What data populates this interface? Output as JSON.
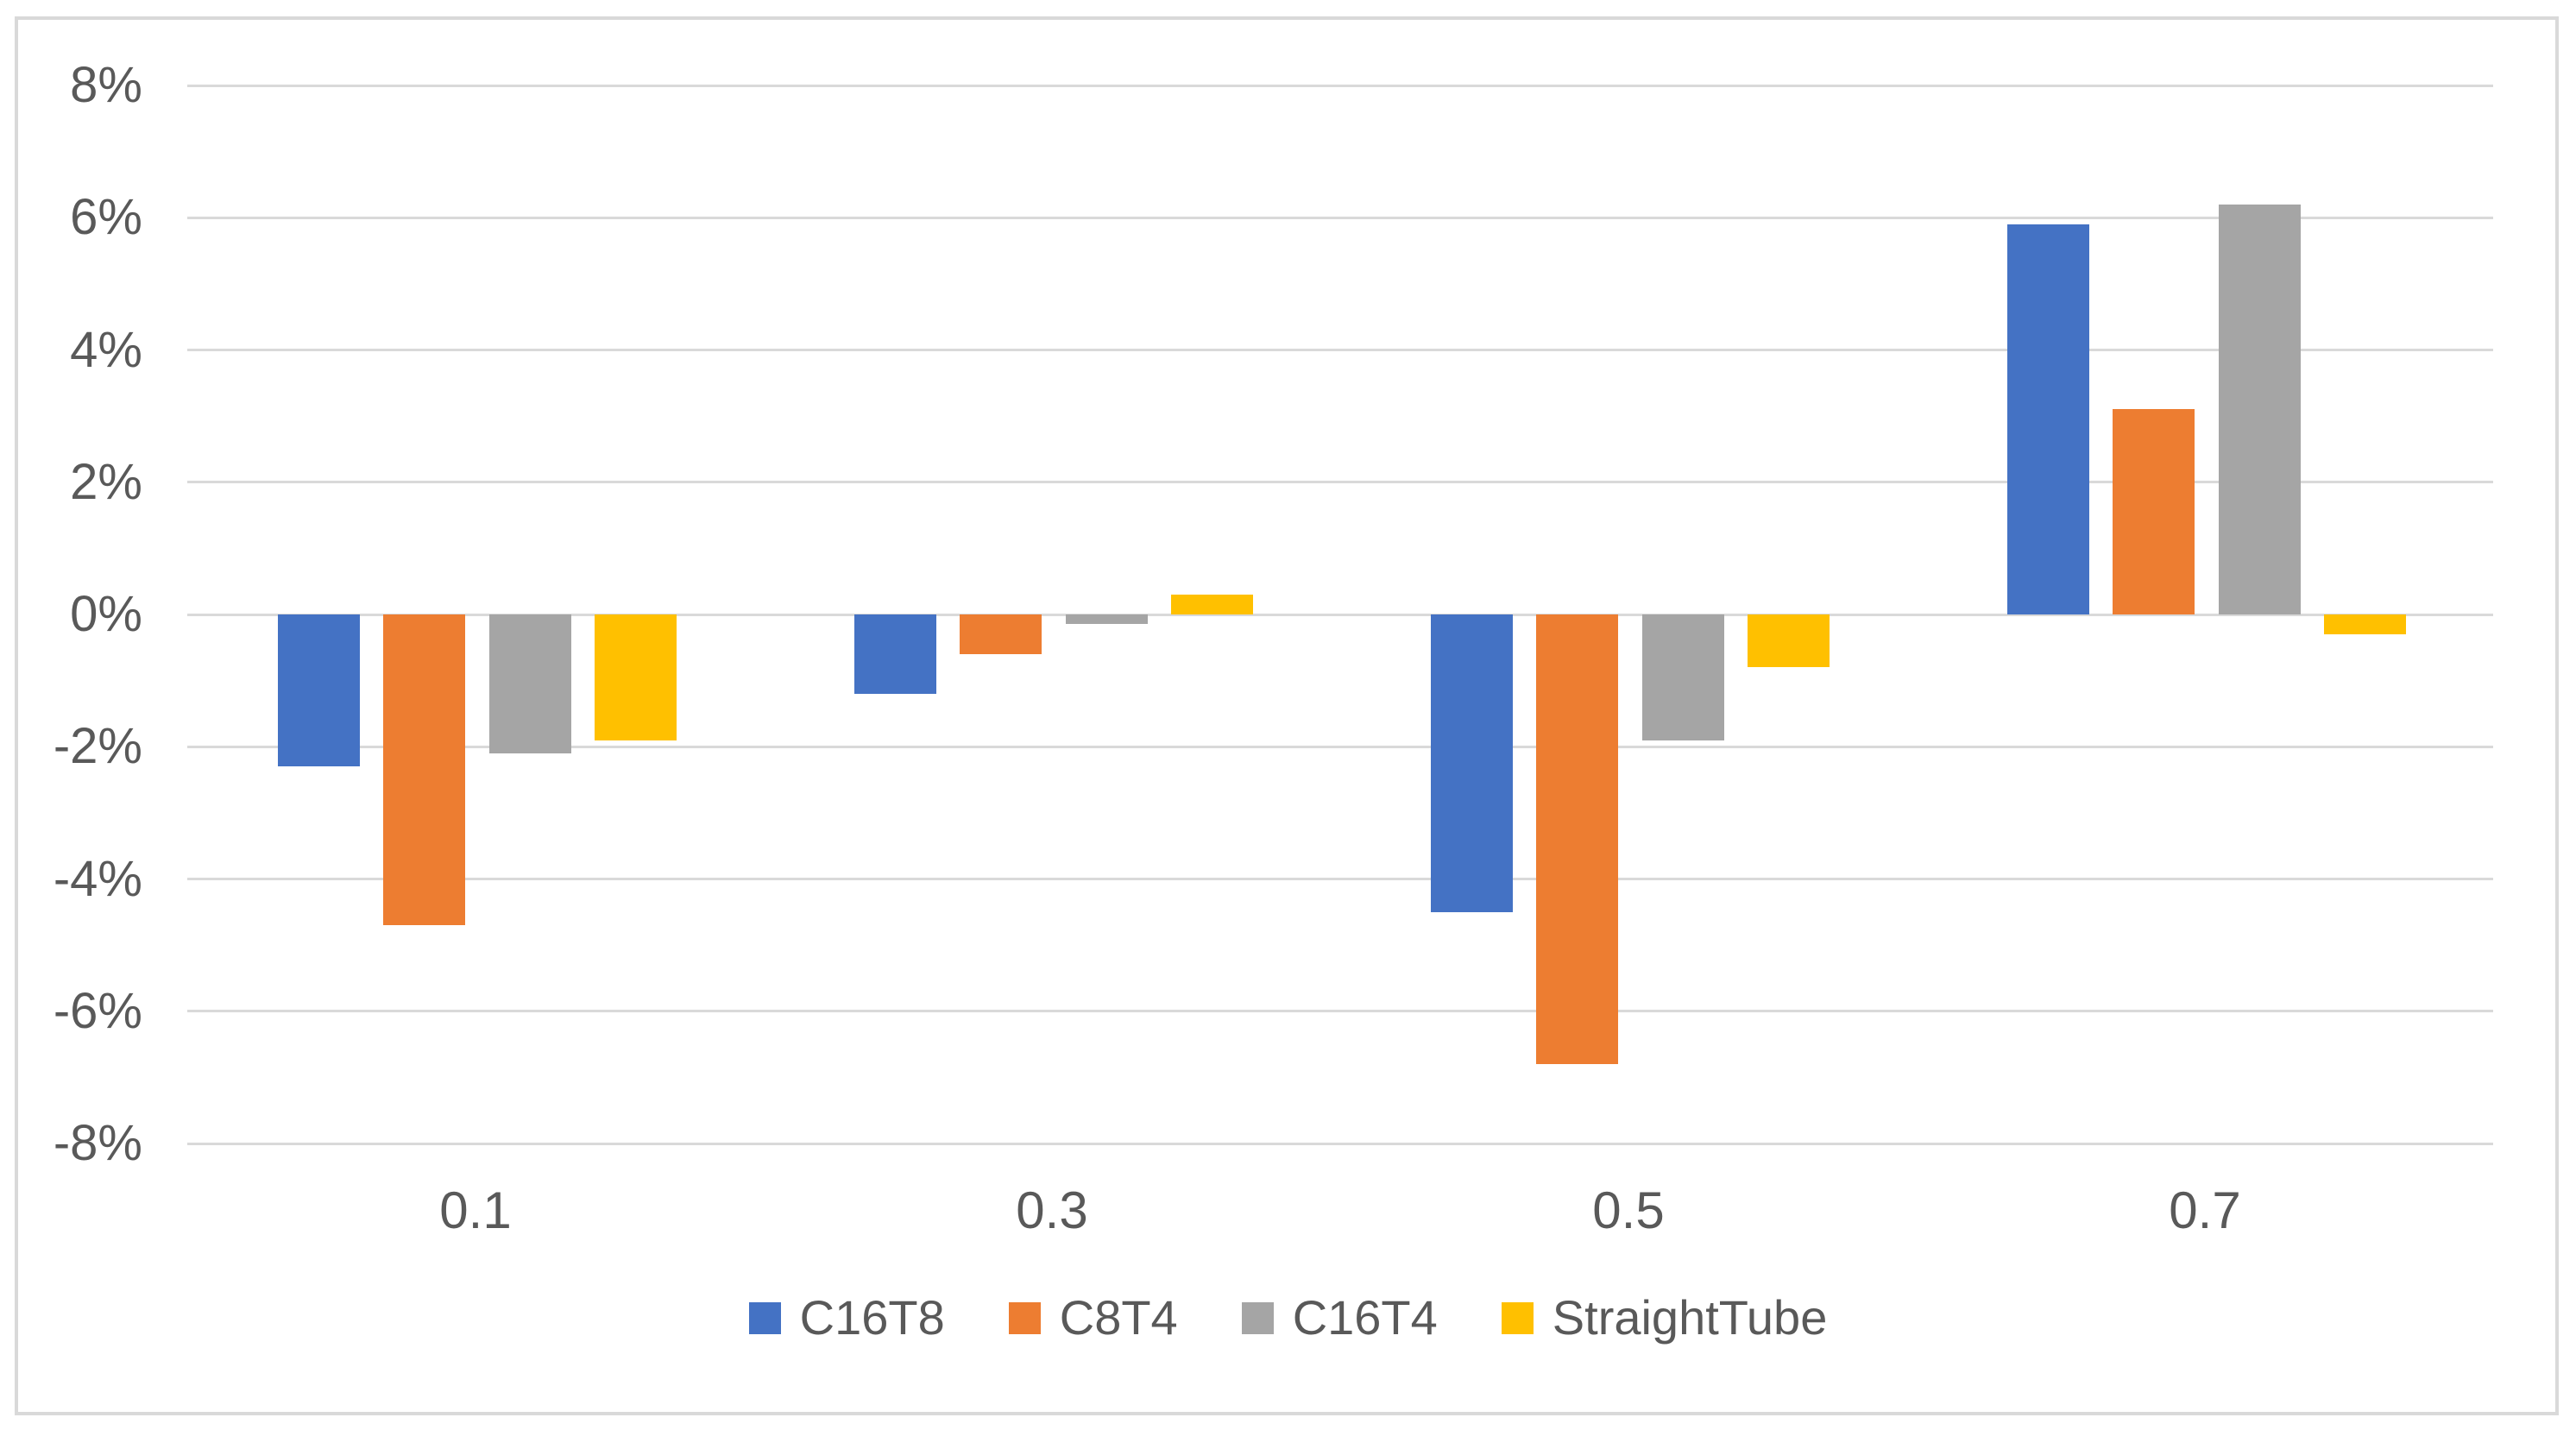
{
  "chart_data": {
    "type": "bar",
    "title": "",
    "xlabel": "",
    "ylabel": "",
    "categories": [
      "0.1",
      "0.3",
      "0.5",
      "0.7"
    ],
    "series": [
      {
        "name": "C16T8",
        "color": "#4472C4",
        "values": [
          -2.3,
          -1.2,
          -4.5,
          5.9
        ]
      },
      {
        "name": "C8T4",
        "color": "#ED7D31",
        "values": [
          -4.7,
          -0.6,
          -6.8,
          3.1
        ]
      },
      {
        "name": "C16T4",
        "color": "#A5A5A5",
        "values": [
          -2.1,
          -0.15,
          -1.9,
          6.2
        ]
      },
      {
        "name": "StraightTube",
        "color": "#FFC000",
        "values": [
          -1.9,
          0.3,
          -0.8,
          -0.3
        ]
      }
    ],
    "ylim": [
      -8,
      8
    ],
    "y_tick_step": 2,
    "y_tick_labels": [
      "8%",
      "6%",
      "4%",
      "2%",
      "0%",
      "-2%",
      "-4%",
      "-6%",
      "-8%"
    ],
    "grid": true,
    "legend_position": "bottom"
  },
  "colors": {
    "background": "#FFFFFF",
    "frame_border": "#D9D9D9",
    "gridline": "#D9D9D9",
    "axis_text": "#595959",
    "legend_text": "#595959"
  }
}
